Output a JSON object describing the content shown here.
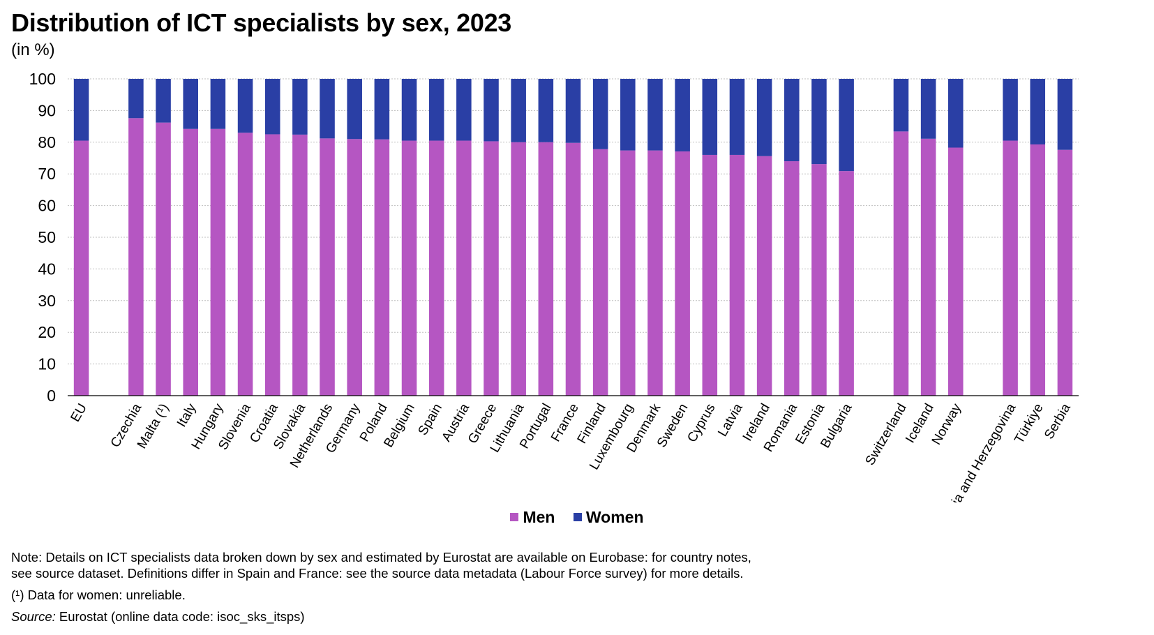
{
  "title": "Distribution of ICT specialists by sex, 2023",
  "subtitle": "(in %)",
  "colors": {
    "men": "#b556c2",
    "women": "#2a3fa5",
    "grid": "#bfbfbf",
    "axis": "#000000"
  },
  "legend": {
    "men_label": "Men",
    "women_label": "Women"
  },
  "notes": {
    "line1": "Note: Details on ICT specialists data broken down by sex and estimated by Eurostat are available on Eurobase: for country notes,",
    "line2": "see source dataset. Definitions differ in Spain and France: see the source data metadata (Labour Force survey) for more details.",
    "line3": "(¹) Data for women: unreliable.",
    "source_label": "Source:",
    "source_text": " Eurostat (online data code: isoc_sks_itsps)"
  },
  "chart_data": {
    "type": "bar",
    "stacked": true,
    "ylim": [
      0,
      100
    ],
    "yticks": [
      0,
      10,
      20,
      30,
      40,
      50,
      60,
      70,
      80,
      90,
      100
    ],
    "grid": "horizontal dotted",
    "legend_position": "bottom-center",
    "categories": [
      "EU",
      "",
      "Czechia",
      "Malta (¹)",
      "Italy",
      "Hungary",
      "Slovenia",
      "Croatia",
      "Slovakia",
      "Netherlands",
      "Germany",
      "Poland",
      "Belgium",
      "Spain",
      "Austria",
      "Greece",
      "Lithuania",
      "Portugal",
      "France",
      "Finland",
      "Luxembourg",
      "Denmark",
      "Sweden",
      "Cyprus",
      "Latvia",
      "Ireland",
      "Romania",
      "Estonia",
      "Bulgaria",
      "",
      "Switzerland",
      "Iceland",
      "Norway",
      "",
      "Bosnia and Herzegovina",
      "Türkiye",
      "Serbia"
    ],
    "series": [
      {
        "name": "Men",
        "values": [
          80.5,
          null,
          87.6,
          86.2,
          84.2,
          84.2,
          83.0,
          82.5,
          82.4,
          81.2,
          81.0,
          80.9,
          80.5,
          80.5,
          80.5,
          80.3,
          80.0,
          80.0,
          79.8,
          77.8,
          77.4,
          77.4,
          77.1,
          76.0,
          76.0,
          75.6,
          74.0,
          73.1,
          70.9,
          null,
          83.4,
          81.1,
          78.3,
          null,
          80.5,
          79.3,
          77.6
        ]
      },
      {
        "name": "Women",
        "values": [
          19.5,
          null,
          12.4,
          13.8,
          15.8,
          15.8,
          17.0,
          17.5,
          17.6,
          18.8,
          19.0,
          19.1,
          19.5,
          19.5,
          19.5,
          19.7,
          20.0,
          20.0,
          20.2,
          22.2,
          22.6,
          22.6,
          22.9,
          24.0,
          24.0,
          24.4,
          26.0,
          26.9,
          29.1,
          null,
          16.6,
          18.9,
          21.7,
          null,
          19.5,
          20.7,
          22.4
        ]
      }
    ]
  }
}
